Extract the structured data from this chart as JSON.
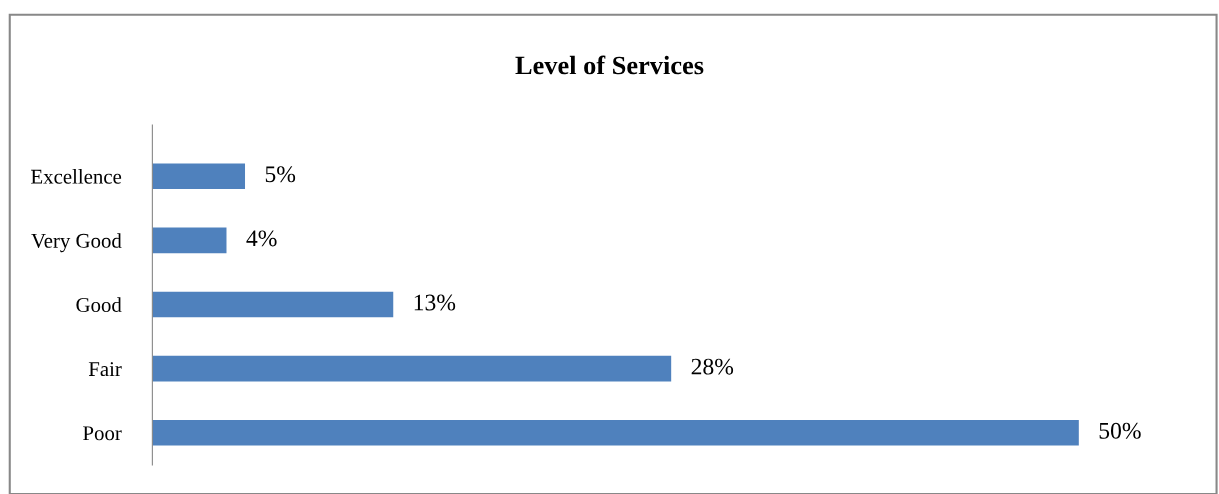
{
  "chart_data": {
    "type": "bar",
    "orientation": "horizontal",
    "title": "Level of Services",
    "categories": [
      "Excellence",
      "Very Good",
      "Good",
      "Fair",
      "Poor"
    ],
    "values": [
      5,
      4,
      13,
      28,
      50
    ],
    "value_labels": [
      "5%",
      "4%",
      "13%",
      "28%",
      "50%"
    ],
    "color": "#4f81bd",
    "grid": false,
    "legend": false
  }
}
